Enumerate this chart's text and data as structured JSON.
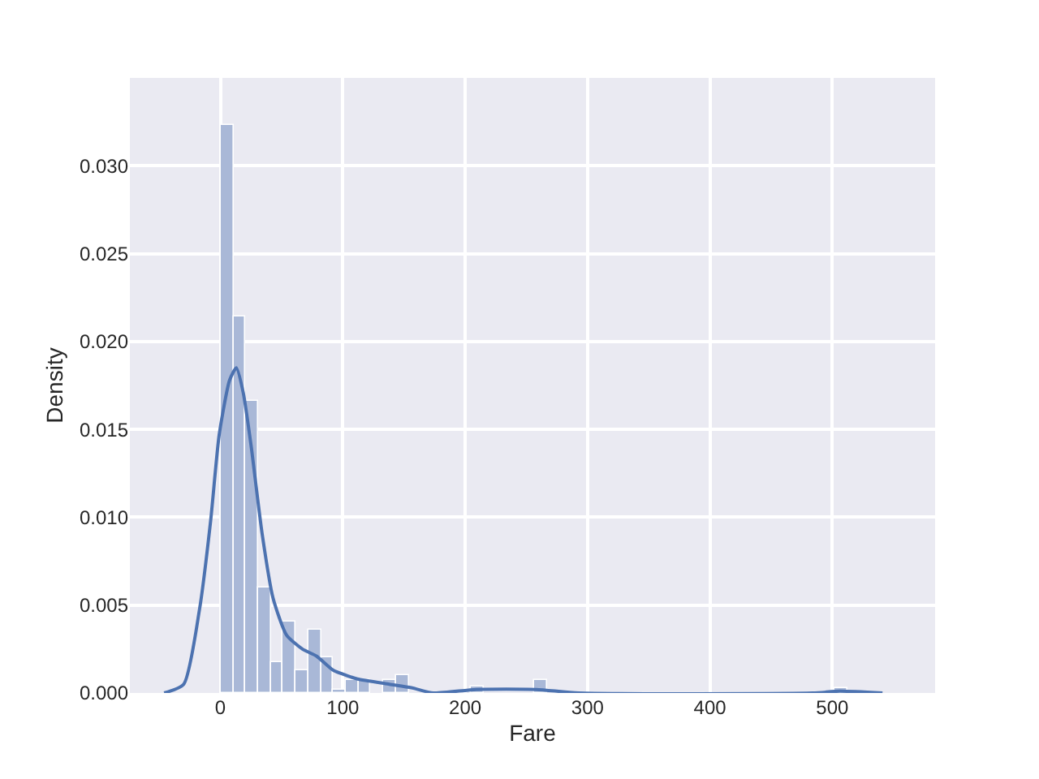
{
  "chart_data": {
    "type": "histogram",
    "xlabel": "Fare",
    "ylabel": "Density",
    "xlim": [
      -74,
      584
    ],
    "ylim": [
      0,
      0.035
    ],
    "xticks": [
      0,
      100,
      200,
      300,
      400,
      500
    ],
    "yticks": [
      {
        "value": 0,
        "label": "0.000"
      },
      {
        "value": 0.005,
        "label": "0.005"
      },
      {
        "value": 0.01,
        "label": "0.010"
      },
      {
        "value": 0.015,
        "label": "0.015"
      },
      {
        "value": 0.02,
        "label": "0.020"
      },
      {
        "value": 0.025,
        "label": "0.025"
      },
      {
        "value": 0.03,
        "label": "0.030"
      }
    ],
    "grid": true,
    "series": [
      {
        "color": "#a9b8d7",
        "bins": [
          0,
          10.25,
          20.49,
          30.74,
          40.99,
          51.23,
          61.48,
          71.73,
          81.97,
          92.22,
          102.47,
          112.71,
          122.96,
          133.21,
          143.45,
          153.7,
          163.95,
          174.19,
          184.44,
          194.69,
          204.93,
          215.18,
          225.43,
          235.67,
          245.92,
          256.16,
          266.41,
          276.66,
          286.9,
          297.15,
          307.4,
          317.64,
          327.89,
          338.14,
          348.38,
          358.63,
          368.88,
          379.12,
          389.37,
          399.62,
          409.86,
          420.11,
          430.36,
          440.6,
          450.85,
          461.1,
          471.34,
          481.59,
          491.84,
          502.08,
          512.33
        ],
        "values": [
          0.0323,
          0.0214,
          0.0166,
          0.006,
          0.0018,
          0.0041,
          0.0013,
          0.0036,
          0.002,
          0.0002,
          0.0007,
          0.0007,
          0,
          0.0007,
          0.001,
          0,
          0,
          0,
          0,
          0,
          0.0004,
          0,
          0,
          0,
          0,
          0.0007,
          0,
          0,
          0,
          0,
          0,
          0,
          0,
          0,
          0,
          0,
          0,
          0,
          0,
          0,
          0,
          0,
          0,
          0,
          0,
          0,
          0,
          0,
          0,
          0.0003
        ]
      },
      {
        "type": "line",
        "color": "#4c72b0",
        "x": [
          -46,
          -30,
          -17,
          -8,
          -1,
          7.5,
          13,
          18.6,
          25,
          34,
          43,
          54,
          67,
          78.5,
          92,
          107,
          112,
          138,
          156,
          174,
          209,
          258,
          293,
          484,
          506,
          541
        ],
        "values": [
          0,
          0.0005,
          0.0048,
          0.0098,
          0.0147,
          0.0178,
          0.0185,
          0.0171,
          0.0141,
          0.0091,
          0.0054,
          0.0033,
          0.0025,
          0.0021,
          0.0013,
          0.0009,
          0.0008,
          0.0005,
          0.0003,
          0,
          0.0002,
          0.0002,
          0,
          0,
          0.0001,
          0
        ]
      }
    ]
  }
}
